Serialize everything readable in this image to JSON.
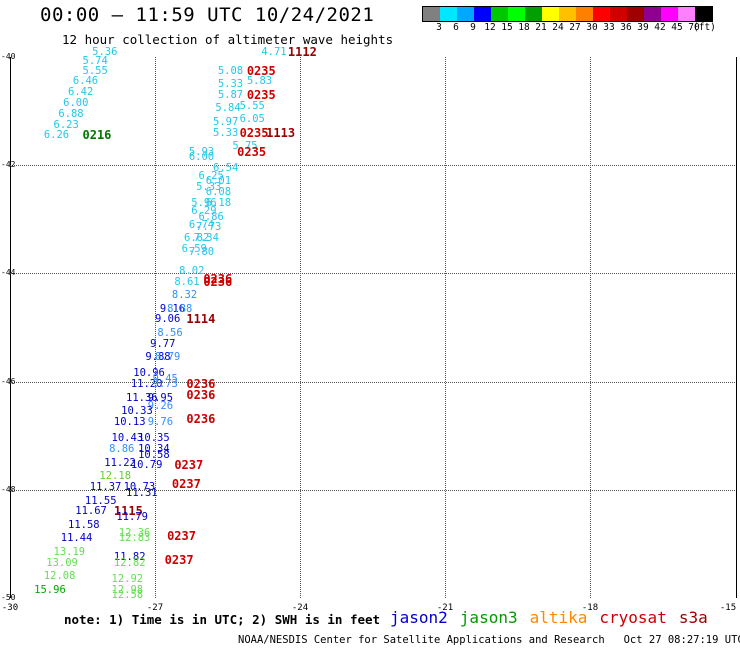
{
  "header": {
    "title": "00:00 – 11:59 UTC 10/24/2021",
    "subtitle": "12 hour collection of altimeter wave heights"
  },
  "legend": {
    "colors": [
      "#808080",
      "#00e8ff",
      "#00a8ff",
      "#0000ff",
      "#00c800",
      "#00ff00",
      "#00a000",
      "#ffff00",
      "#ffc000",
      "#ff8000",
      "#ff0000",
      "#d00000",
      "#a00000",
      "#900090",
      "#ff00ff",
      "#ff80ff",
      "#000000"
    ],
    "labels": [
      "3",
      "6",
      "9",
      "12",
      "15",
      "18",
      "21",
      "24",
      "27",
      "30",
      "33",
      "36",
      "39",
      "42",
      "45",
      "70",
      "(ft)"
    ]
  },
  "axes": {
    "lat_labels": [
      "-40",
      "-42",
      "-44",
      "-46",
      "-48",
      "-50"
    ],
    "lon_labels": [
      "-30",
      "-27",
      "-24",
      "-21",
      "-18",
      "-15"
    ]
  },
  "colors": {
    "jason2": "#0000cc",
    "jason3": "#009900",
    "altika": "#ff8800",
    "cryosat": "#cc0000",
    "s3a": "#990000",
    "cyan": "#22c8e8",
    "light_blue": "#3090ff",
    "green": "#66cc33",
    "dark_green": "#007700",
    "light_green": "#66dd55"
  },
  "observations": [
    {
      "value": "5.36",
      "lat": -39.9,
      "lon": -28.3,
      "color": "#22c8e8"
    },
    {
      "value": "5.74",
      "lat": -40.07,
      "lon": -28.5,
      "color": "#22c8e8"
    },
    {
      "value": "5.55",
      "lat": -40.25,
      "lon": -28.5,
      "color": "#22c8e8"
    },
    {
      "value": "6.46",
      "lat": -40.45,
      "lon": -28.7,
      "color": "#22c8e8"
    },
    {
      "value": "6.42",
      "lat": -40.65,
      "lon": -28.8,
      "color": "#22c8e8"
    },
    {
      "value": "6.00",
      "lat": -40.85,
      "lon": -28.9,
      "color": "#22c8e8"
    },
    {
      "value": "6.88",
      "lat": -41.05,
      "lon": -29.0,
      "color": "#22c8e8"
    },
    {
      "value": "6.23",
      "lat": -41.25,
      "lon": -29.1,
      "color": "#22c8e8"
    },
    {
      "value": "6.26",
      "lat": -41.45,
      "lon": -29.3,
      "color": "#22c8e8"
    },
    {
      "value": "0216",
      "lat": -41.45,
      "lon": -28.5,
      "color": "#007700",
      "time": true
    },
    {
      "value": "4.71",
      "lat": -39.9,
      "lon": -24.8,
      "color": "#22c8e8"
    },
    {
      "value": "1112",
      "lat": -39.9,
      "lon": -24.25,
      "color": "#990000",
      "time": true
    },
    {
      "value": "5.08",
      "lat": -40.25,
      "lon": -25.7,
      "color": "#22c8e8"
    },
    {
      "value": "0235",
      "lat": -40.25,
      "lon": -25.1,
      "color": "#cc0000",
      "time": true
    },
    {
      "value": "5.83",
      "lat": -40.45,
      "lon": -25.1,
      "color": "#22c8e8"
    },
    {
      "value": "5.33",
      "lat": -40.5,
      "lon": -25.7,
      "color": "#22c8e8"
    },
    {
      "value": "5.87",
      "lat": -40.7,
      "lon": -25.7,
      "color": "#22c8e8"
    },
    {
      "value": "0235",
      "lat": -40.7,
      "lon": -25.1,
      "color": "#cc0000",
      "time": true
    },
    {
      "value": "5.55",
      "lat": -40.9,
      "lon": -25.25,
      "color": "#22c8e8"
    },
    {
      "value": "5.84",
      "lat": -40.95,
      "lon": -25.75,
      "color": "#22c8e8"
    },
    {
      "value": "6.05",
      "lat": -41.15,
      "lon": -25.25,
      "color": "#22c8e8"
    },
    {
      "value": "5.97",
      "lat": -41.2,
      "lon": -25.8,
      "color": "#22c8e8"
    },
    {
      "value": "5.33",
      "lat": -41.4,
      "lon": -25.8,
      "color": "#22c8e8"
    },
    {
      "value": "0235",
      "lat": -41.4,
      "lon": -25.25,
      "color": "#cc0000",
      "time": true
    },
    {
      "value": "1113",
      "lat": -41.4,
      "lon": -24.7,
      "color": "#990000",
      "time": true
    },
    {
      "value": "5.75",
      "lat": -41.65,
      "lon": -25.4,
      "color": "#22c8e8"
    },
    {
      "value": "5.93",
      "lat": -41.75,
      "lon": -26.3,
      "color": "#22c8e8"
    },
    {
      "value": "0235",
      "lat": -41.75,
      "lon": -25.3,
      "color": "#cc0000",
      "time": true
    },
    {
      "value": "6.00",
      "lat": -41.85,
      "lon": -26.3,
      "color": "#22c8e8"
    },
    {
      "value": "6.54",
      "lat": -42.05,
      "lon": -25.8,
      "color": "#22c8e8"
    },
    {
      "value": "6.25",
      "lat": -42.2,
      "lon": -26.1,
      "color": "#22c8e8"
    },
    {
      "value": "6.01",
      "lat": -42.3,
      "lon": -25.95,
      "color": "#22c8e8"
    },
    {
      "value": "5.33",
      "lat": -42.4,
      "lon": -26.15,
      "color": "#22c8e8"
    },
    {
      "value": "6.08",
      "lat": -42.5,
      "lon": -25.95,
      "color": "#22c8e8"
    },
    {
      "value": "5.96",
      "lat": -42.7,
      "lon": -26.25,
      "color": "#22c8e8"
    },
    {
      "value": "6.18",
      "lat": -42.7,
      "lon": -25.95,
      "color": "#22c8e8"
    },
    {
      "value": "6.29",
      "lat": -42.85,
      "lon": -26.25,
      "color": "#22c8e8"
    },
    {
      "value": "6.86",
      "lat": -42.95,
      "lon": -26.1,
      "color": "#22c8e8"
    },
    {
      "value": "6.74",
      "lat": -43.1,
      "lon": -26.3,
      "color": "#22c8e8"
    },
    {
      "value": "7.73",
      "lat": -43.15,
      "lon": -26.15,
      "color": "#22c8e8"
    },
    {
      "value": "6.82",
      "lat": -43.35,
      "lon": -26.4,
      "color": "#22c8e8"
    },
    {
      "value": "7.34",
      "lat": -43.35,
      "lon": -26.2,
      "color": "#22c8e8"
    },
    {
      "value": "6.59",
      "lat": -43.55,
      "lon": -26.45,
      "color": "#22c8e8"
    },
    {
      "value": "7.80",
      "lat": -43.6,
      "lon": -26.3,
      "color": "#22c8e8"
    },
    {
      "value": "8.02",
      "lat": -43.95,
      "lon": -26.5,
      "color": "#22c8e8"
    },
    {
      "value": "8.61",
      "lat": -44.15,
      "lon": -26.6,
      "color": "#22c8e8"
    },
    {
      "value": "0236",
      "lat": -44.1,
      "lon": -26.0,
      "color": "#cc0000",
      "time": true
    },
    {
      "value": "0236",
      "lat": -44.15,
      "lon": -26.0,
      "color": "#cc0000",
      "time": true
    },
    {
      "value": "8.32",
      "lat": -44.4,
      "lon": -26.65,
      "color": "#3090ff"
    },
    {
      "value": "9.16",
      "lat": -44.65,
      "lon": -26.9,
      "color": "#0000cc"
    },
    {
      "value": "8.88",
      "lat": -44.65,
      "lon": -26.75,
      "color": "#3090ff"
    },
    {
      "value": "9.06",
      "lat": -44.85,
      "lon": -27.0,
      "color": "#0000cc"
    },
    {
      "value": "1114",
      "lat": -44.85,
      "lon": -26.35,
      "color": "#990000",
      "time": true
    },
    {
      "value": "8.56",
      "lat": -45.1,
      "lon": -26.95,
      "color": "#3090ff"
    },
    {
      "value": "9.77",
      "lat": -45.3,
      "lon": -27.1,
      "color": "#0000cc"
    },
    {
      "value": "9.88",
      "lat": -45.55,
      "lon": -27.2,
      "color": "#0000cc"
    },
    {
      "value": "8.79",
      "lat": -45.55,
      "lon": -27.0,
      "color": "#3090ff"
    },
    {
      "value": "10.96",
      "lat": -45.85,
      "lon": -27.45,
      "color": "#0000cc"
    },
    {
      "value": "9.45",
      "lat": -45.95,
      "lon": -27.05,
      "color": "#3090ff"
    },
    {
      "value": "11.20",
      "lat": -46.05,
      "lon": -27.5,
      "color": "#0000cc"
    },
    {
      "value": "9.73",
      "lat": -46.05,
      "lon": -27.05,
      "color": "#3090ff"
    },
    {
      "value": "0236",
      "lat": -46.05,
      "lon": -26.35,
      "color": "#cc0000",
      "time": true
    },
    {
      "value": "11.36",
      "lat": -46.3,
      "lon": -27.6,
      "color": "#0000cc"
    },
    {
      "value": "9.95",
      "lat": -46.3,
      "lon": -27.15,
      "color": "#0000cc"
    },
    {
      "value": "0236",
      "lat": -46.25,
      "lon": -26.35,
      "color": "#cc0000",
      "time": true
    },
    {
      "value": "9.26",
      "lat": -46.45,
      "lon": -27.15,
      "color": "#3090ff"
    },
    {
      "value": "10.33",
      "lat": -46.55,
      "lon": -27.7,
      "color": "#0000cc"
    },
    {
      "value": "10.13",
      "lat": -46.75,
      "lon": -27.85,
      "color": "#0000cc"
    },
    {
      "value": "9.76",
      "lat": -46.75,
      "lon": -27.15,
      "color": "#3090ff"
    },
    {
      "value": "0236",
      "lat": -46.7,
      "lon": -26.35,
      "color": "#cc0000",
      "time": true
    },
    {
      "value": "10.43",
      "lat": -47.05,
      "lon": -27.9,
      "color": "#0000cc"
    },
    {
      "value": "10.35",
      "lat": -47.05,
      "lon": -27.35,
      "color": "#0000cc"
    },
    {
      "value": "8.86",
      "lat": -47.25,
      "lon": -27.95,
      "color": "#3090ff"
    },
    {
      "value": "10.34",
      "lat": -47.25,
      "lon": -27.35,
      "color": "#0000cc"
    },
    {
      "value": "10.58",
      "lat": -47.35,
      "lon": -27.35,
      "color": "#0000cc"
    },
    {
      "value": "11.22",
      "lat": -47.5,
      "lon": -28.05,
      "color": "#0000cc"
    },
    {
      "value": "10.79",
      "lat": -47.55,
      "lon": -27.5,
      "color": "#0000cc"
    },
    {
      "value": "0237",
      "lat": -47.55,
      "lon": -26.6,
      "color": "#cc0000",
      "time": true
    },
    {
      "value": "12.18",
      "lat": -47.75,
      "lon": -28.15,
      "color": "#66cc33"
    },
    {
      "value": "11.37",
      "lat": -47.95,
      "lon": -28.35,
      "color": "#0000cc"
    },
    {
      "value": "10.73",
      "lat": -47.95,
      "lon": -27.65,
      "color": "#0000cc"
    },
    {
      "value": "0237",
      "lat": -47.9,
      "lon": -26.65,
      "color": "#cc0000",
      "time": true
    },
    {
      "value": "11.31",
      "lat": -48.05,
      "lon": -27.6,
      "color": "#0000cc"
    },
    {
      "value": "11.55",
      "lat": -48.2,
      "lon": -28.45,
      "color": "#0000cc"
    },
    {
      "value": "11.67",
      "lat": -48.4,
      "lon": -28.65,
      "color": "#0000cc"
    },
    {
      "value": "1115",
      "lat": -48.4,
      "lon": -27.85,
      "color": "#990000",
      "time": true
    },
    {
      "value": "11.79",
      "lat": -48.5,
      "lon": -27.8,
      "color": "#0000cc"
    },
    {
      "value": "11.58",
      "lat": -48.65,
      "lon": -28.8,
      "color": "#0000cc"
    },
    {
      "value": "12.36",
      "lat": -48.8,
      "lon": -27.75,
      "color": "#66dd55"
    },
    {
      "value": "11.44",
      "lat": -48.9,
      "lon": -28.95,
      "color": "#0000cc"
    },
    {
      "value": "12.83",
      "lat": -48.9,
      "lon": -27.75,
      "color": "#66dd55"
    },
    {
      "value": "0237",
      "lat": -48.85,
      "lon": -26.75,
      "color": "#cc0000",
      "time": true
    },
    {
      "value": "13.19",
      "lat": -49.15,
      "lon": -29.1,
      "color": "#66dd55"
    },
    {
      "value": "11.82",
      "lat": -49.25,
      "lon": -27.85,
      "color": "#0000cc"
    },
    {
      "value": "13.09",
      "lat": -49.35,
      "lon": -29.25,
      "color": "#66dd55"
    },
    {
      "value": "12.82",
      "lat": -49.35,
      "lon": -27.85,
      "color": "#66dd55"
    },
    {
      "value": "0237",
      "lat": -49.3,
      "lon": -26.8,
      "color": "#cc0000",
      "time": true
    },
    {
      "value": "12.08",
      "lat": -49.6,
      "lon": -29.3,
      "color": "#66dd55"
    },
    {
      "value": "12.92",
      "lat": -49.65,
      "lon": -27.9,
      "color": "#66dd55"
    },
    {
      "value": "15.96",
      "lat": -49.85,
      "lon": -29.5,
      "color": "#00aa00"
    },
    {
      "value": "12.98",
      "lat": -49.85,
      "lon": -27.9,
      "color": "#66dd55"
    },
    {
      "value": "12.58",
      "lat": -49.95,
      "lon": -27.9,
      "color": "#66dd55"
    }
  ],
  "footer": {
    "note": "note: 1) Time is in UTC; 2) SWH is in feet",
    "satellites": [
      {
        "name": "jason2",
        "color": "#0000cc"
      },
      {
        "name": "jason3",
        "color": "#009900"
      },
      {
        "name": "altika",
        "color": "#ff8800"
      },
      {
        "name": "cryosat",
        "color": "#cc0000"
      },
      {
        "name": "s3a",
        "color": "#990000"
      }
    ],
    "credit": "NOAA/NESDIS Center for Satellite Applications and Research   Oct 27 08:27:19 UTC 2021"
  }
}
